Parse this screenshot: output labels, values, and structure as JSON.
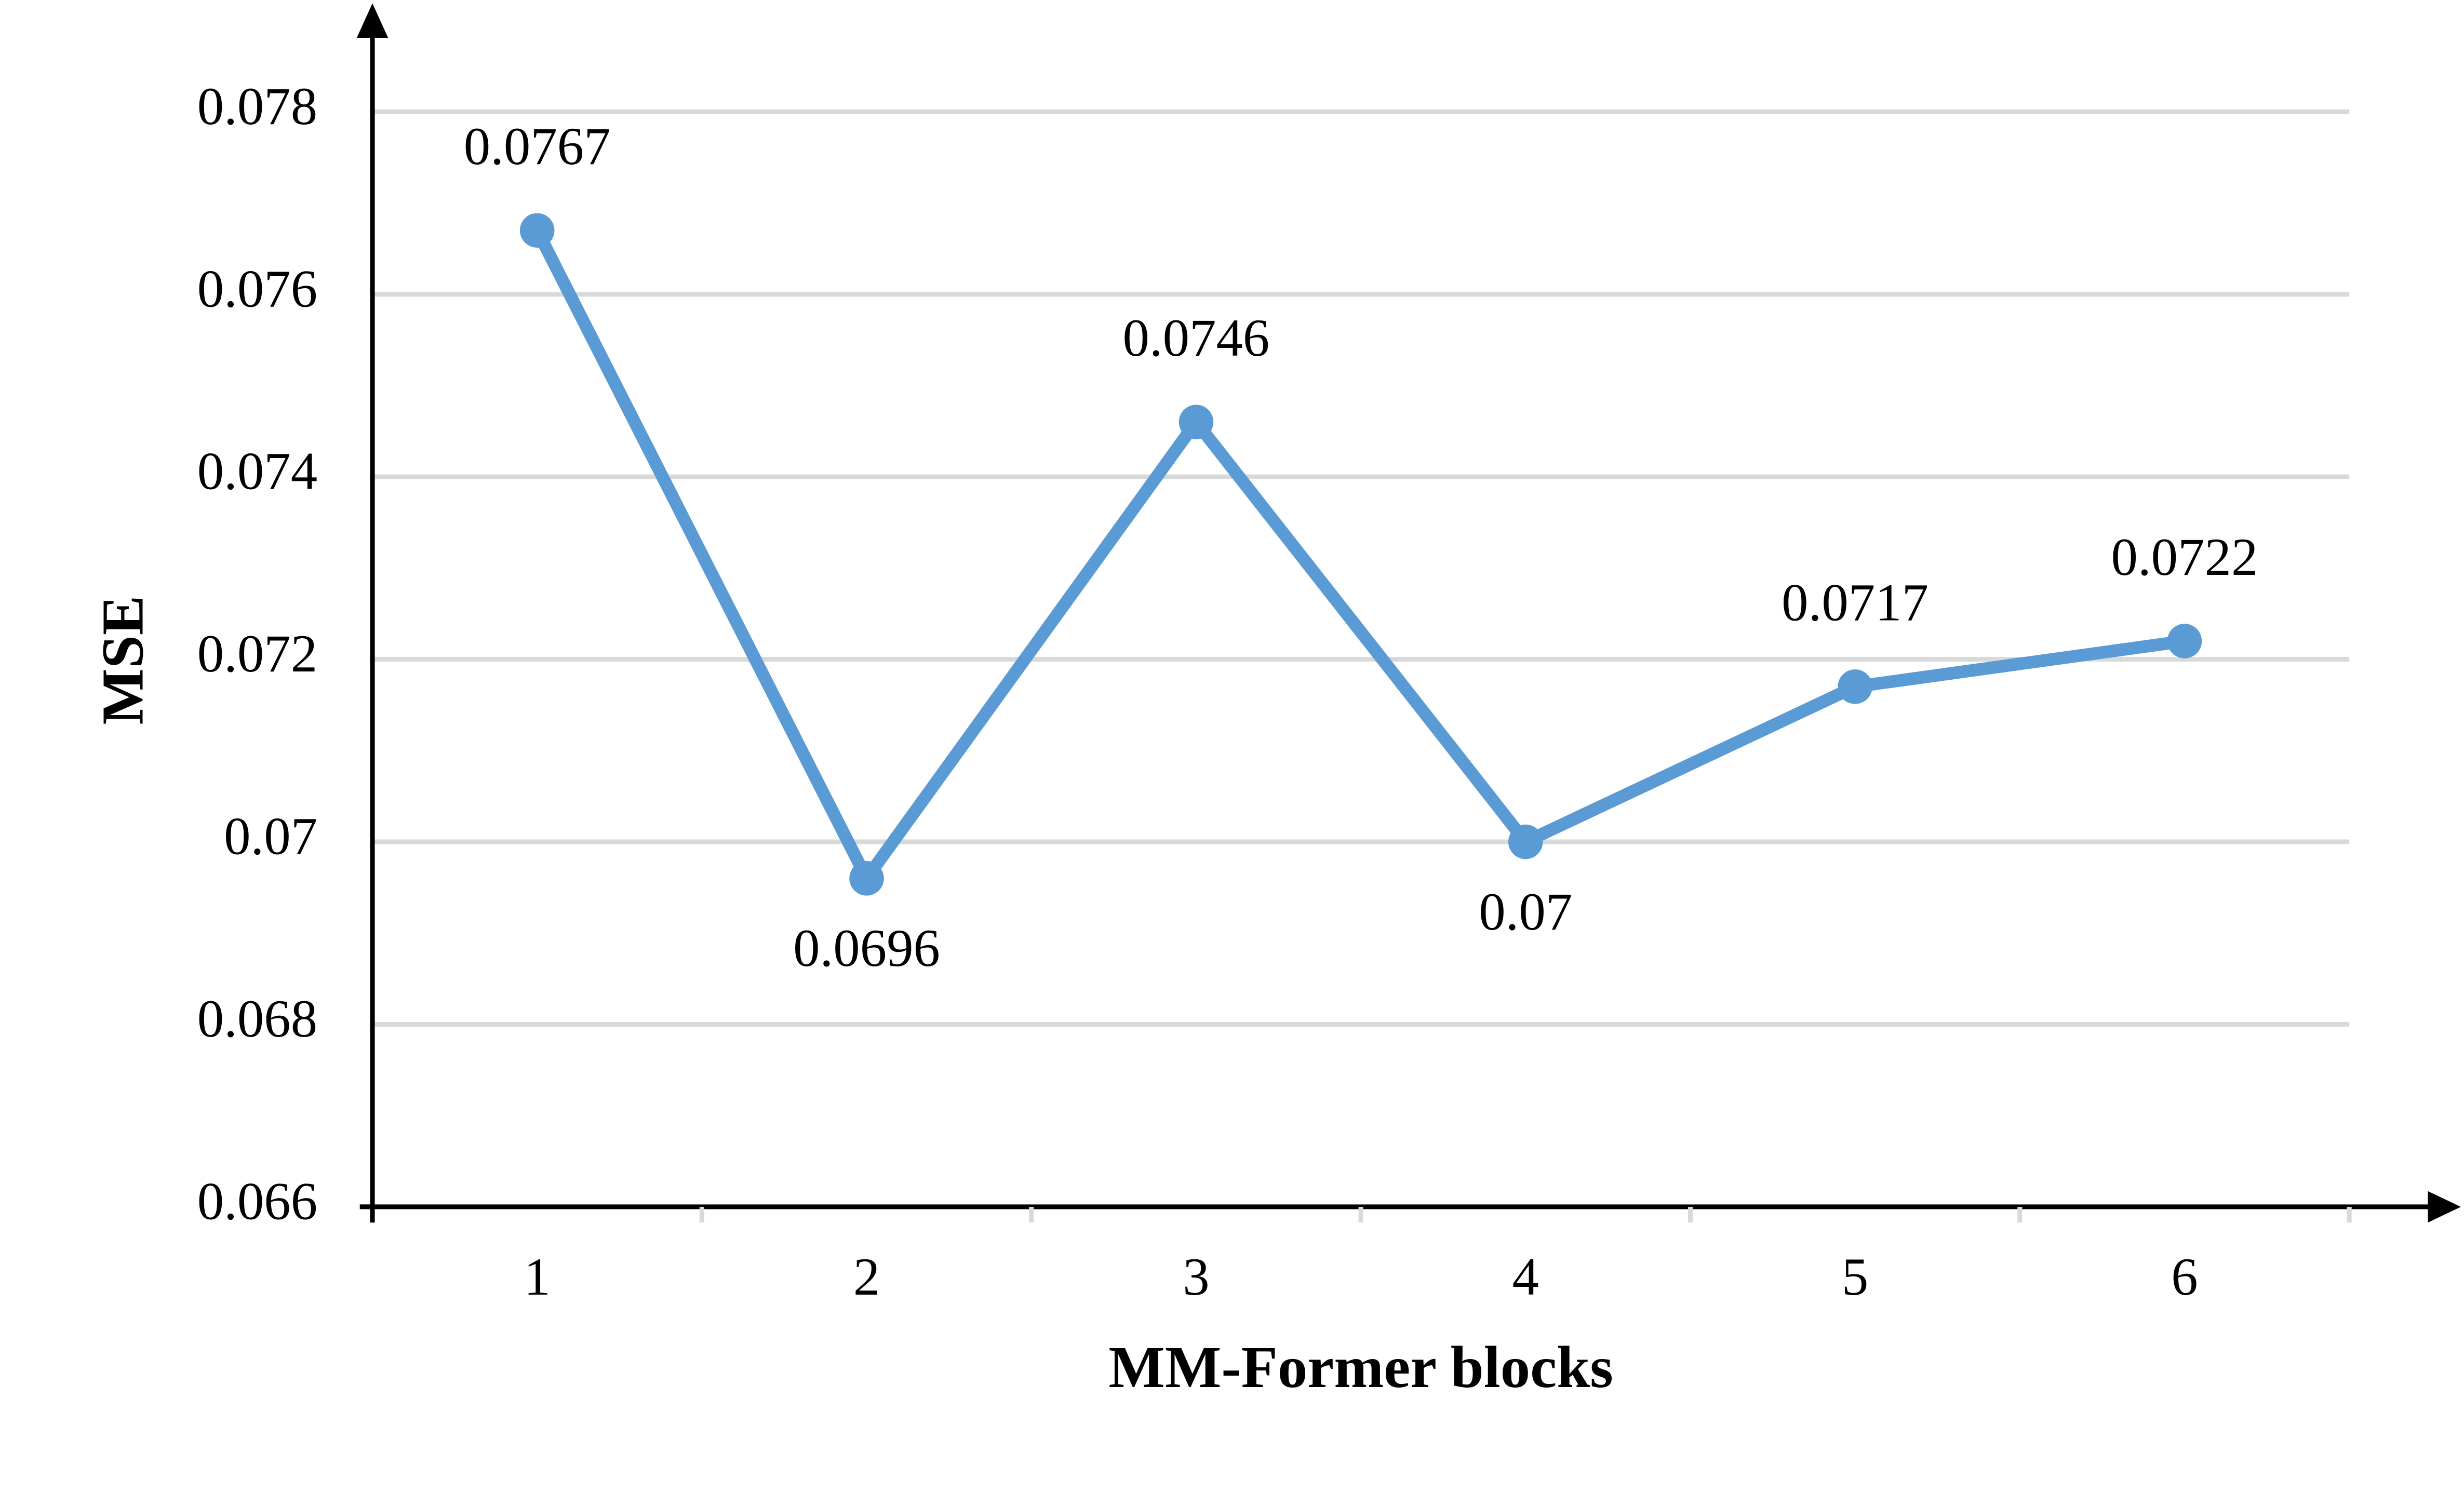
{
  "chart_data": {
    "type": "line",
    "x_label": "MM-Former blocks",
    "y_label": "MSE",
    "categories": [
      "1",
      "2",
      "3",
      "4",
      "5",
      "6"
    ],
    "series": [
      {
        "name": "MSE",
        "color": "#5b9bd5",
        "values": [
          0.0767,
          0.0696,
          0.0746,
          0.07,
          0.0717,
          0.0722
        ]
      }
    ],
    "ylim": [
      0.066,
      0.078
    ],
    "yticks": [
      0.066,
      0.068,
      0.07,
      0.072,
      0.074,
      0.076,
      0.078
    ],
    "grid": true
  }
}
